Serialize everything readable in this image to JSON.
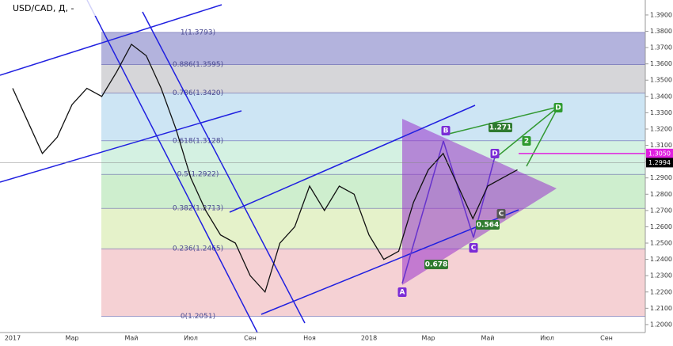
{
  "chart_data": {
    "type": "line",
    "title": "USD/CAD, Д, -",
    "categories": [
      "2017",
      null,
      null,
      null,
      "Мар",
      null,
      null,
      null,
      "Май",
      null,
      null,
      null,
      "Июл",
      null,
      null,
      null,
      "Сен",
      null,
      null,
      null,
      "Ноя",
      null,
      null,
      null,
      "2018",
      null,
      null,
      null,
      "Мар",
      null,
      null,
      null,
      "Май",
      null,
      null,
      null,
      "Июл",
      null,
      null,
      null,
      "Сен",
      null,
      null
    ],
    "series": [
      {
        "name": "USD/CAD",
        "color": "#111111",
        "values": [
          1.345,
          1.325,
          1.305,
          1.315,
          1.335,
          1.345,
          1.34,
          1.355,
          1.372,
          1.365,
          1.345,
          1.32,
          1.29,
          1.27,
          1.255,
          1.25,
          1.23,
          1.22,
          1.25,
          1.26,
          1.285,
          1.27,
          1.285,
          1.28,
          1.255,
          1.24,
          1.245,
          1.275,
          1.295,
          1.305,
          1.285,
          1.265,
          1.285,
          1.29,
          1.295,
          null,
          null,
          null,
          null,
          null,
          null,
          null,
          null
        ]
      }
    ],
    "ylim": [
      1.1951,
      1.3992
    ],
    "yticks": [
      {
        "value": 1.39,
        "label": "1.3900"
      },
      {
        "value": 1.38,
        "label": "1.3800"
      },
      {
        "value": 1.37,
        "label": "1.3700"
      },
      {
        "value": 1.36,
        "label": "1.3600"
      },
      {
        "value": 1.35,
        "label": "1.3500"
      },
      {
        "value": 1.34,
        "label": "1.3400"
      },
      {
        "value": 1.33,
        "label": "1.3300"
      },
      {
        "value": 1.32,
        "label": "1.3200"
      },
      {
        "value": 1.31,
        "label": "1.3100"
      },
      {
        "value": 1.3,
        "label": "1.3000"
      },
      {
        "value": 1.29,
        "label": "1.2900"
      },
      {
        "value": 1.28,
        "label": "1.2800"
      },
      {
        "value": 1.27,
        "label": "1.2700"
      },
      {
        "value": 1.26,
        "label": "1.2600"
      },
      {
        "value": 1.25,
        "label": "1.2500"
      },
      {
        "value": 1.24,
        "label": "1.2400"
      },
      {
        "value": 1.23,
        "label": "1.2300"
      },
      {
        "value": 1.22,
        "label": "1.2200"
      },
      {
        "value": 1.21,
        "label": "1.2100"
      },
      {
        "value": 1.2,
        "label": "1.2000"
      }
    ],
    "fib_levels": [
      {
        "value": 1.3793,
        "label": "1(1.3793)",
        "color": "#9a9ad2"
      },
      {
        "value": 1.3595,
        "label": "0.886(1.3595)",
        "color": "#c8c8cc"
      },
      {
        "value": 1.342,
        "label": "0.786(1.3420)",
        "color": "#bcdcf0"
      },
      {
        "value": 1.3128,
        "label": "0.618(1.3128)",
        "color": "#c6ecd8"
      },
      {
        "value": 1.2922,
        "label": "0.5(1.2922)",
        "color": "#bde8bd"
      },
      {
        "value": 1.2713,
        "label": "0.382(1.2713)",
        "color": "#dcedb8"
      },
      {
        "value": 1.2465,
        "label": "0.236(1.2465)",
        "color": "#f2c2c6"
      },
      {
        "value": 1.2051,
        "label": "0(1.2051)",
        "color": "#f2c2c6"
      }
    ],
    "price_tags": [
      {
        "value": 1.305,
        "label": "1.3050",
        "color": "#e020e0"
      },
      {
        "value": 1.2994,
        "label": "1.2994",
        "color": "#000000"
      }
    ],
    "pattern_labels": [
      "A",
      "B",
      "C",
      "D",
      "C",
      "D",
      "2",
      "1.271",
      "0.564",
      "0.678"
    ]
  }
}
